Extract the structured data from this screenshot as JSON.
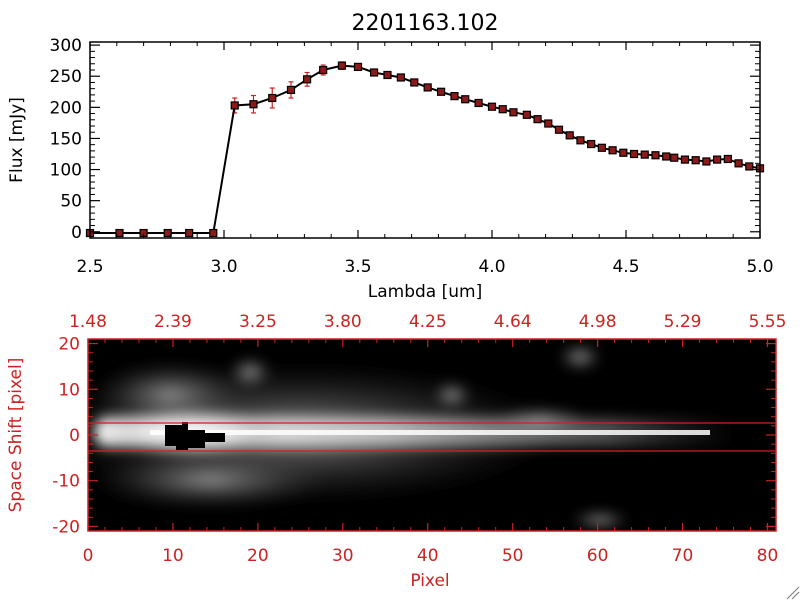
{
  "colors": {
    "axis": "#000000",
    "line": "#000000",
    "marker_fill": "#8b1a1a",
    "error_bar": "#cc2222",
    "image_axis": "#cc2222",
    "image_bg": "#000000"
  },
  "chart_data": [
    {
      "type": "line",
      "title": "2201163.102",
      "xlabel": "Lambda [um]",
      "ylabel": "Flux [mJy]",
      "xlim": [
        2.5,
        5.0
      ],
      "ylim": [
        -10,
        305
      ],
      "xticks": [
        "2.5",
        "3.0",
        "3.5",
        "4.0",
        "4.5",
        "5.0"
      ],
      "yticks": [
        "0",
        "50",
        "100",
        "150",
        "200",
        "250",
        "300"
      ],
      "grid": false,
      "series": [
        {
          "x": [
            2.5,
            2.61,
            2.7,
            2.79,
            2.87,
            2.96,
            3.04,
            3.11,
            3.18,
            3.25,
            3.31,
            3.37,
            3.44,
            3.5,
            3.56,
            3.61,
            3.66,
            3.71,
            3.76,
            3.81,
            3.86,
            3.9,
            3.95,
            4.0,
            4.04,
            4.08,
            4.13,
            4.17,
            4.21,
            4.25,
            4.29,
            4.33,
            4.37,
            4.41,
            4.45,
            4.49,
            4.53,
            4.57,
            4.61,
            4.65,
            4.68,
            4.72,
            4.76,
            4.8,
            4.84,
            4.88,
            4.92,
            4.96,
            5.0
          ],
          "y": [
            -2,
            -2,
            -2,
            -2,
            -2,
            -2,
            203,
            205,
            215,
            228,
            245,
            260,
            267,
            265,
            256,
            252,
            248,
            240,
            232,
            225,
            218,
            213,
            207,
            201,
            197,
            192,
            188,
            181,
            174,
            164,
            155,
            147,
            141,
            135,
            131,
            127,
            125,
            124,
            123,
            121,
            119,
            116,
            115,
            113,
            116,
            117,
            110,
            105,
            102
          ],
          "yerr": [
            0,
            0,
            0,
            0,
            0,
            0,
            12,
            14,
            16,
            13,
            11,
            8,
            6,
            5,
            4,
            3,
            3,
            3,
            3,
            3,
            3,
            3,
            3,
            3,
            3,
            3,
            3,
            3,
            3,
            3,
            3,
            3,
            3,
            3,
            3,
            3,
            3,
            3,
            3,
            3,
            3,
            3,
            3,
            3,
            3,
            3,
            3,
            3,
            3
          ]
        }
      ]
    },
    {
      "type": "heatmap",
      "xlabel": "Pixel",
      "ylabel": "Space Shift [pixel]",
      "xlim": [
        0,
        81
      ],
      "ylim": [
        -21,
        21
      ],
      "xticks": [
        "0",
        "10",
        "20",
        "30",
        "40",
        "50",
        "60",
        "70",
        "80"
      ],
      "yticks": [
        "-20",
        "-10",
        "0",
        "10",
        "20"
      ],
      "top_axis_labels": [
        "1.48",
        "2.39",
        "3.25",
        "3.80",
        "4.25",
        "4.64",
        "4.98",
        "5.29",
        "5.55"
      ],
      "extraction_window": [
        -3,
        3
      ],
      "grid": false
    }
  ]
}
